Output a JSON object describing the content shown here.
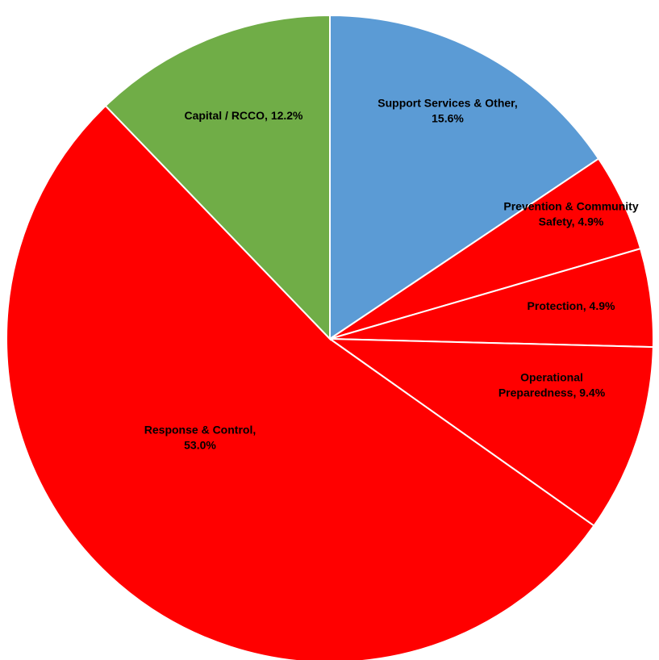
{
  "chart_data": {
    "type": "pie",
    "title": "",
    "slices": [
      {
        "label": "Support Services & Other",
        "value": 15.6,
        "display": "15.6%",
        "color": "#5b9bd5"
      },
      {
        "label": "Prevention & Community Safety",
        "value": 4.9,
        "display": "4.9%",
        "color": "#ff0000"
      },
      {
        "label": "Protection",
        "value": 4.9,
        "display": "4.9%",
        "color": "#ff0000"
      },
      {
        "label": "Operational Preparedness",
        "value": 9.4,
        "display": "9.4%",
        "color": "#ff0000"
      },
      {
        "label": "Response & Control",
        "value": 53.0,
        "display": "53.0%",
        "color": "#ff0000"
      },
      {
        "label": "Capital / RCCO",
        "value": 12.2,
        "display": "12.2%",
        "color": "#70ad47"
      }
    ],
    "legend": "none",
    "data_labels": "category-and-percent"
  }
}
